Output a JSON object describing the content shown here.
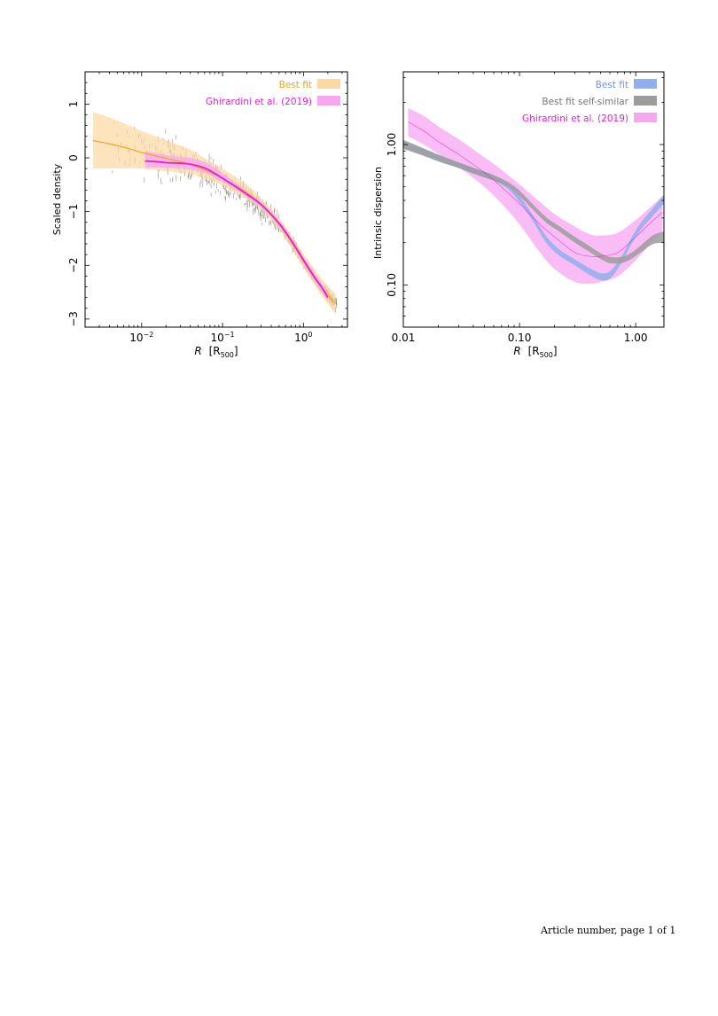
{
  "footer": "Article number, page 1 of 1",
  "chart_data": [
    {
      "type": "line",
      "xlabel_italic": "R",
      "xlabel_unit_open": "[R",
      "xlabel_unit_sub": "500",
      "xlabel_unit_close": "]",
      "ylabel": "Scaled density",
      "x_scale": "log",
      "xlim": [
        0.002,
        3.5
      ],
      "ylim": [
        -3.15,
        1.6
      ],
      "xtick_labels": [
        {
          "x": 0.01,
          "base": "10",
          "exp": "−2"
        },
        {
          "x": 0.1,
          "base": "10",
          "exp": "−1"
        },
        {
          "x": 1,
          "base": "10",
          "exp": "0"
        }
      ],
      "ytick_labels": [
        {
          "y": 1,
          "text": "1"
        },
        {
          "y": 0,
          "text": "0"
        },
        {
          "y": -1,
          "text": "−1"
        },
        {
          "y": -2,
          "text": "−2"
        },
        {
          "y": -3,
          "text": "−3"
        }
      ],
      "grid": false,
      "legend_position": "top-right",
      "legend": [
        {
          "label": "Best fit",
          "color": "#f2a51a",
          "swatch": "#fcd9a0"
        },
        {
          "label": "Ghirardini et al. (2019)",
          "color": "#e81cd6",
          "swatch": "#f7a6f0"
        }
      ],
      "series": [
        {
          "name": "Best fit",
          "color": "#f2a51a",
          "band_color": "#fcd9a0",
          "x": [
            0.0025,
            0.004,
            0.007,
            0.01,
            0.02,
            0.04,
            0.07,
            0.1,
            0.2,
            0.3,
            0.5,
            0.7,
            1.0,
            1.5,
            2.0,
            2.5
          ],
          "y": [
            0.32,
            0.26,
            0.17,
            0.1,
            -0.01,
            -0.12,
            -0.27,
            -0.38,
            -0.65,
            -0.87,
            -1.23,
            -1.55,
            -1.92,
            -2.32,
            -2.55,
            -2.72
          ],
          "lower": [
            -0.2,
            -0.2,
            -0.2,
            -0.2,
            -0.25,
            -0.3,
            -0.42,
            -0.52,
            -0.77,
            -0.97,
            -1.33,
            -1.67,
            -2.05,
            -2.46,
            -2.72,
            -2.92
          ],
          "upper": [
            0.85,
            0.75,
            0.6,
            0.5,
            0.33,
            0.15,
            -0.07,
            -0.2,
            -0.5,
            -0.75,
            -1.12,
            -1.43,
            -1.78,
            -2.15,
            -2.38,
            -2.52
          ]
        },
        {
          "name": "Ghirardini et al. (2019)",
          "color": "#e81cd6",
          "band_color": "#f7a6f0",
          "x": [
            0.011,
            0.015,
            0.02,
            0.03,
            0.04,
            0.06,
            0.08,
            0.1,
            0.15,
            0.2,
            0.3,
            0.5,
            0.7,
            1.0,
            1.3,
            1.7,
            2.0
          ],
          "y": [
            -0.06,
            -0.07,
            -0.09,
            -0.1,
            -0.12,
            -0.19,
            -0.29,
            -0.38,
            -0.55,
            -0.68,
            -0.87,
            -1.22,
            -1.53,
            -1.9,
            -2.17,
            -2.42,
            -2.6
          ],
          "lower": [
            -0.18,
            -0.18,
            -0.19,
            -0.2,
            -0.22,
            -0.28,
            -0.37,
            -0.45,
            -0.6,
            -0.73,
            -0.92,
            -1.27,
            -1.58,
            -1.96,
            -2.24,
            -2.5,
            -2.68
          ],
          "upper": [
            0.12,
            0.09,
            0.05,
            0.02,
            0.0,
            -0.08,
            -0.18,
            -0.28,
            -0.48,
            -0.62,
            -0.82,
            -1.17,
            -1.48,
            -1.84,
            -2.1,
            -2.35,
            -2.5
          ]
        }
      ],
      "scatter_note": "grey profile points with vertical error bars"
    },
    {
      "type": "line",
      "xlabel_italic": "R",
      "xlabel_unit_open": "[R",
      "xlabel_unit_sub": "500",
      "xlabel_unit_close": "]",
      "ylabel": "Intrinsic dispersion",
      "x_scale": "log",
      "y_scale": "log",
      "xlim": [
        0.01,
        1.75
      ],
      "ylim": [
        0.05,
        3.3
      ],
      "xtick_labels": [
        {
          "x": 0.01,
          "text": "0.01"
        },
        {
          "x": 0.1,
          "text": "0.10"
        },
        {
          "x": 1.0,
          "text": "1.00"
        }
      ],
      "ytick_labels": [
        {
          "y": 0.1,
          "text": "0.10"
        },
        {
          "y": 1.0,
          "text": "1.00"
        }
      ],
      "grid": false,
      "legend_position": "top-right",
      "legend": [
        {
          "label": "Best fit",
          "color": "#6f96e0",
          "swatch": "#8fb0ec"
        },
        {
          "label": "Best fit self-similar",
          "color": "#777777",
          "swatch": "#9c9c9c"
        },
        {
          "label": "Ghirardini et al. (2019)",
          "color": "#e81cd6",
          "swatch": "#f7a6f0"
        }
      ],
      "series": [
        {
          "name": "Ghirardini et al. (2019)",
          "color": "#e81cd6",
          "band_color": "#f7a6f0",
          "x": [
            0.011,
            0.015,
            0.02,
            0.03,
            0.05,
            0.07,
            0.1,
            0.15,
            0.2,
            0.3,
            0.4,
            0.5,
            0.7,
            1.0,
            1.3,
            1.7
          ],
          "y": [
            1.45,
            1.25,
            1.05,
            0.85,
            0.63,
            0.5,
            0.38,
            0.27,
            0.22,
            0.17,
            0.16,
            0.16,
            0.17,
            0.22,
            0.27,
            0.33
          ],
          "lower": [
            1.15,
            1.0,
            0.86,
            0.69,
            0.5,
            0.38,
            0.27,
            0.17,
            0.13,
            0.105,
            0.102,
            0.105,
            0.115,
            0.15,
            0.19,
            0.24
          ],
          "upper": [
            1.82,
            1.6,
            1.35,
            1.09,
            0.81,
            0.66,
            0.52,
            0.39,
            0.32,
            0.26,
            0.23,
            0.225,
            0.235,
            0.29,
            0.35,
            0.43
          ]
        },
        {
          "name": "Best fit",
          "color": "#6f96e0",
          "band_color": "#8fb0ec",
          "x": [
            0.01,
            0.015,
            0.02,
            0.03,
            0.045,
            0.06,
            0.08,
            0.1,
            0.13,
            0.17,
            0.22,
            0.3,
            0.4,
            0.5,
            0.6,
            0.75,
            0.9,
            1.1,
            1.4,
            1.75
          ],
          "y": [
            1.0,
            0.88,
            0.8,
            0.71,
            0.63,
            0.58,
            0.5,
            0.41,
            0.3,
            0.21,
            0.17,
            0.145,
            0.125,
            0.114,
            0.118,
            0.15,
            0.2,
            0.26,
            0.33,
            0.41
          ],
          "lower": [
            0.95,
            0.84,
            0.76,
            0.68,
            0.6,
            0.555,
            0.48,
            0.39,
            0.285,
            0.2,
            0.162,
            0.138,
            0.118,
            0.108,
            0.111,
            0.142,
            0.19,
            0.245,
            0.31,
            0.38
          ],
          "upper": [
            1.06,
            0.93,
            0.84,
            0.745,
            0.66,
            0.605,
            0.52,
            0.43,
            0.315,
            0.222,
            0.179,
            0.152,
            0.132,
            0.121,
            0.125,
            0.158,
            0.21,
            0.275,
            0.35,
            0.44
          ]
        },
        {
          "name": "Best fit self-similar",
          "color": "#777777",
          "band_color": "#9c9c9c",
          "x": [
            0.01,
            0.015,
            0.02,
            0.03,
            0.045,
            0.06,
            0.08,
            0.1,
            0.13,
            0.17,
            0.22,
            0.3,
            0.4,
            0.5,
            0.6,
            0.75,
            0.9,
            1.1,
            1.4,
            1.75
          ],
          "y": [
            1.0,
            0.88,
            0.8,
            0.71,
            0.63,
            0.58,
            0.52,
            0.45,
            0.36,
            0.29,
            0.25,
            0.21,
            0.18,
            0.16,
            0.15,
            0.15,
            0.16,
            0.18,
            0.21,
            0.22
          ],
          "lower": [
            0.93,
            0.83,
            0.76,
            0.68,
            0.6,
            0.555,
            0.5,
            0.43,
            0.345,
            0.278,
            0.24,
            0.2,
            0.172,
            0.153,
            0.143,
            0.143,
            0.152,
            0.17,
            0.195,
            0.2
          ],
          "upper": [
            1.08,
            0.94,
            0.85,
            0.745,
            0.66,
            0.605,
            0.54,
            0.47,
            0.376,
            0.303,
            0.262,
            0.22,
            0.189,
            0.168,
            0.158,
            0.158,
            0.168,
            0.19,
            0.225,
            0.24
          ]
        }
      ]
    }
  ]
}
